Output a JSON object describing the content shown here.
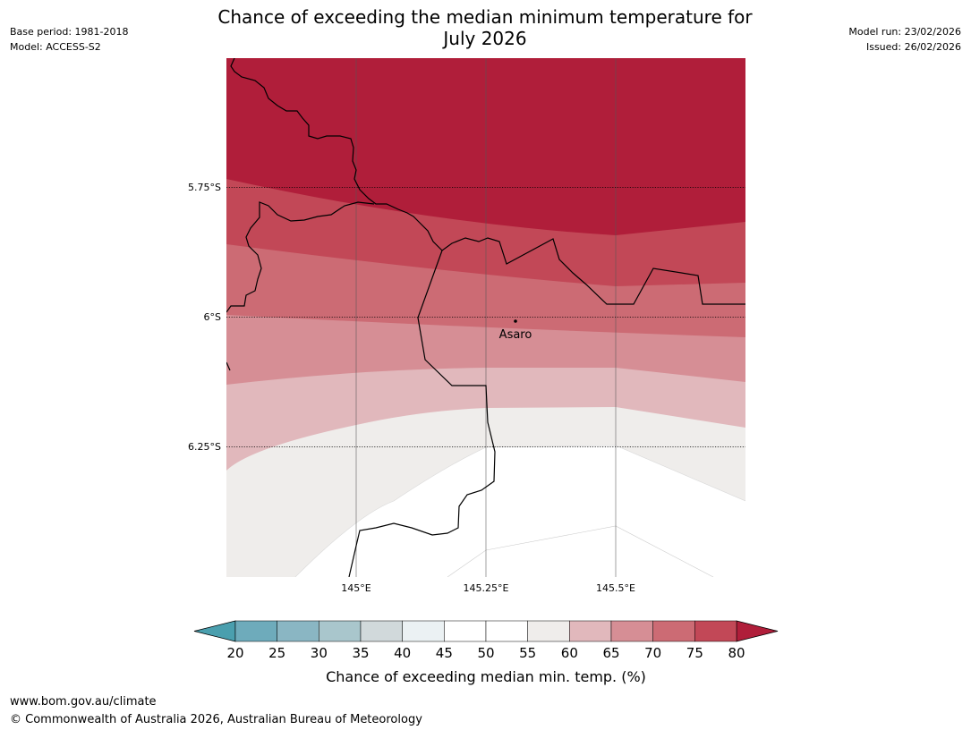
{
  "title": "Chance of exceeding the median minimum temperature for July 2026",
  "title_line1": "Chance of exceeding the median minimum temperature for",
  "title_line2": "July 2026",
  "meta": {
    "base_period": "Base period: 1981-2018",
    "model": "Model: ACCESS-S2",
    "model_run": "Model run: 23/02/2026",
    "issued": "Issued: 26/02/2026"
  },
  "map": {
    "lat_labels": [
      "5.75°S",
      "6°S",
      "6.25°S"
    ],
    "lon_labels": [
      "145°E",
      "145.25°E",
      "145.5°E"
    ],
    "place": {
      "name": "Asaro"
    }
  },
  "colorbar": {
    "ticks": [
      "20",
      "25",
      "30",
      "35",
      "40",
      "45",
      "50",
      "55",
      "60",
      "65",
      "70",
      "75",
      "80"
    ],
    "colors": {
      "below_20": "#4a9fae",
      "20-25": "#6eabbb",
      "25-30": "#8ab6c3",
      "30-35": "#a9c6cc",
      "35-40": "#d1d9db",
      "40-45": "#ebf1f3",
      "45-50": "#ffffff",
      "50-55": "#ffffff",
      "55-60": "#efedeb",
      "60-65": "#e1b8bc",
      "65-70": "#d68e95",
      "70-75": "#cc6b74",
      "75-80": "#c24857",
      "above_80": "#b01e3a"
    },
    "label": "Chance of exceeding median min. temp. (%)"
  },
  "footer": {
    "url": "www.bom.gov.au/climate",
    "copyright": "© Commonwealth of Australia 2026, Australian Bureau of Meteorology"
  }
}
